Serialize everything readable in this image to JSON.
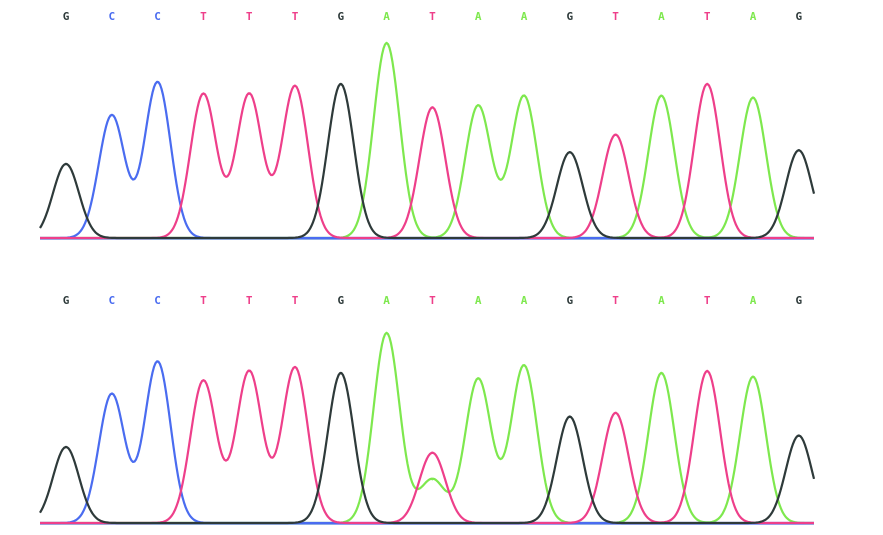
{
  "colors": {
    "G": "#2e3a3a",
    "C": "#4a6cf0",
    "T": "#ee3f8a",
    "A": "#7ee84e",
    "baseline": "#4a6cf0"
  },
  "chart_data": [
    {
      "type": "line",
      "title": "",
      "xlabel": "",
      "ylabel": "",
      "ylim": [
        0,
        100
      ],
      "grid": false,
      "bases": [
        {
          "letter": "G",
          "x": 1,
          "h": 38
        },
        {
          "letter": "C",
          "x": 2,
          "h": 63
        },
        {
          "letter": "C",
          "x": 3,
          "h": 80
        },
        {
          "letter": "T",
          "x": 4,
          "h": 74
        },
        {
          "letter": "T",
          "x": 5,
          "h": 74
        },
        {
          "letter": "T",
          "x": 6,
          "h": 78
        },
        {
          "letter": "G",
          "x": 7,
          "h": 79
        },
        {
          "letter": "A",
          "x": 8,
          "h": 100
        },
        {
          "letter": "T",
          "x": 9,
          "h": 67
        },
        {
          "letter": "A",
          "x": 10,
          "h": 68
        },
        {
          "letter": "A",
          "x": 11,
          "h": 73
        },
        {
          "letter": "G",
          "x": 12,
          "h": 44
        },
        {
          "letter": "T",
          "x": 13,
          "h": 53
        },
        {
          "letter": "A",
          "x": 14,
          "h": 73
        },
        {
          "letter": "T",
          "x": 15,
          "h": 79
        },
        {
          "letter": "A",
          "x": 16,
          "h": 72
        },
        {
          "letter": "G",
          "x": 17,
          "h": 45
        }
      ],
      "extra_peaks": []
    },
    {
      "type": "line",
      "title": "",
      "xlabel": "",
      "ylabel": "",
      "ylim": [
        0,
        100
      ],
      "grid": false,
      "bases": [
        {
          "letter": "G",
          "x": 1,
          "h": 40
        },
        {
          "letter": "C",
          "x": 2,
          "h": 68
        },
        {
          "letter": "C",
          "x": 3,
          "h": 85
        },
        {
          "letter": "T",
          "x": 4,
          "h": 75
        },
        {
          "letter": "T",
          "x": 5,
          "h": 80
        },
        {
          "letter": "T",
          "x": 6,
          "h": 82
        },
        {
          "letter": "G",
          "x": 7,
          "h": 79
        },
        {
          "letter": "A",
          "x": 8,
          "h": 100
        },
        {
          "letter": "T",
          "x": 9,
          "h": 37
        },
        {
          "letter": "A",
          "x": 10,
          "h": 76
        },
        {
          "letter": "A",
          "x": 11,
          "h": 83
        },
        {
          "letter": "G",
          "x": 12,
          "h": 56
        },
        {
          "letter": "T",
          "x": 13,
          "h": 58
        },
        {
          "letter": "A",
          "x": 14,
          "h": 79
        },
        {
          "letter": "T",
          "x": 15,
          "h": 80
        },
        {
          "letter": "A",
          "x": 16,
          "h": 77
        },
        {
          "letter": "G",
          "x": 17,
          "h": 46
        }
      ],
      "extra_peaks": [
        {
          "letter": "A",
          "x": 9,
          "h": 23
        }
      ]
    }
  ]
}
